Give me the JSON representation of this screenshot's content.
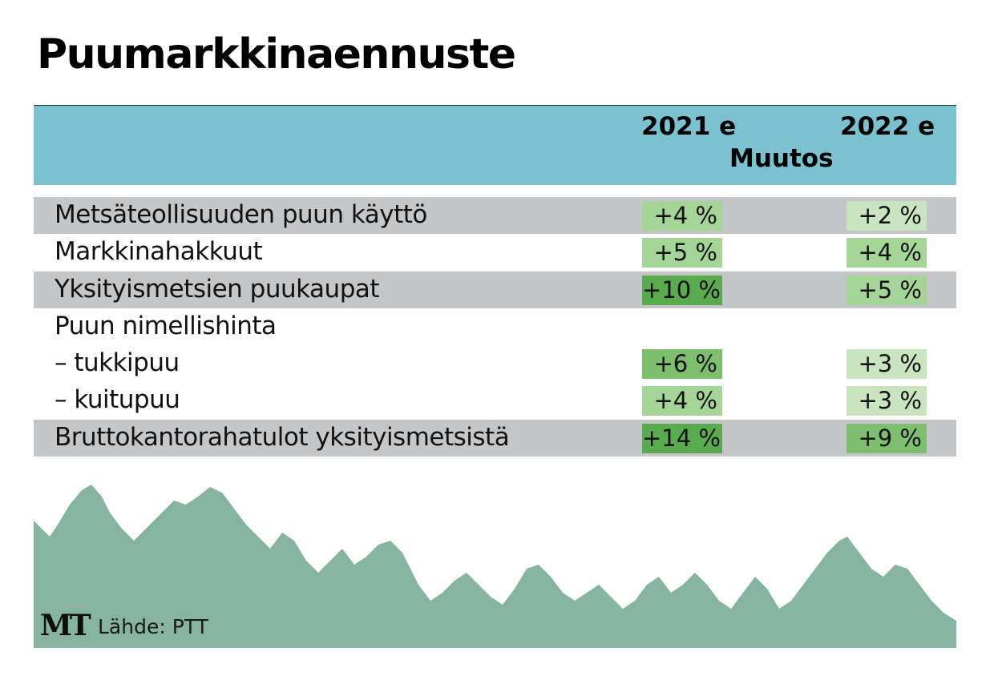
{
  "title": "Puumarkkinaennuste",
  "header": {
    "col_2021": "2021 e",
    "col_muutos": "Muutos",
    "col_2022": "2022 e"
  },
  "colors": {
    "header_band": "#7cc1cf",
    "row_shade": "#c5c6c8",
    "cell_scale": [
      "#c9e5bf",
      "#a4d496",
      "#7ebf6f",
      "#5aab4f"
    ],
    "forest": "#86b4a0"
  },
  "chart_data": {
    "type": "table",
    "title": "Puumarkkinaennuste",
    "columns": [
      "2021 e",
      "2022 e"
    ],
    "column_group": "Muutos",
    "unit": "%",
    "rows": [
      {
        "label": "Metsäteollisuuden puun käyttö",
        "shaded": true,
        "v2021": "+4 %",
        "v2022": "+2 %",
        "n2021": 4,
        "n2022": 2
      },
      {
        "label": "Markkinahakkuut",
        "shaded": false,
        "v2021": "+5 %",
        "v2022": "+4 %",
        "n2021": 5,
        "n2022": 4
      },
      {
        "label": "Yksityismetsien puukaupat",
        "shaded": true,
        "v2021": "+10 %",
        "v2022": "+5 %",
        "n2021": 10,
        "n2022": 5
      },
      {
        "label": "Puun nimellishinta",
        "shaded": false,
        "v2021": "",
        "v2022": "",
        "n2021": null,
        "n2022": null
      },
      {
        "label": "– tukkipuu",
        "shaded": false,
        "v2021": "+6 %",
        "v2022": "+3 %",
        "n2021": 6,
        "n2022": 3
      },
      {
        "label": "– kuitupuu",
        "shaded": false,
        "v2021": "+4 %",
        "v2022": "+3 %",
        "n2021": 4,
        "n2022": 3
      },
      {
        "label": "Bruttokantorahatulot yksityismetsistä",
        "shaded": true,
        "v2021": "+14 %",
        "v2022": "+9 %",
        "n2021": 14,
        "n2022": 9
      }
    ]
  },
  "footer": {
    "logo": "MT",
    "source": "Lähde: PTT"
  }
}
